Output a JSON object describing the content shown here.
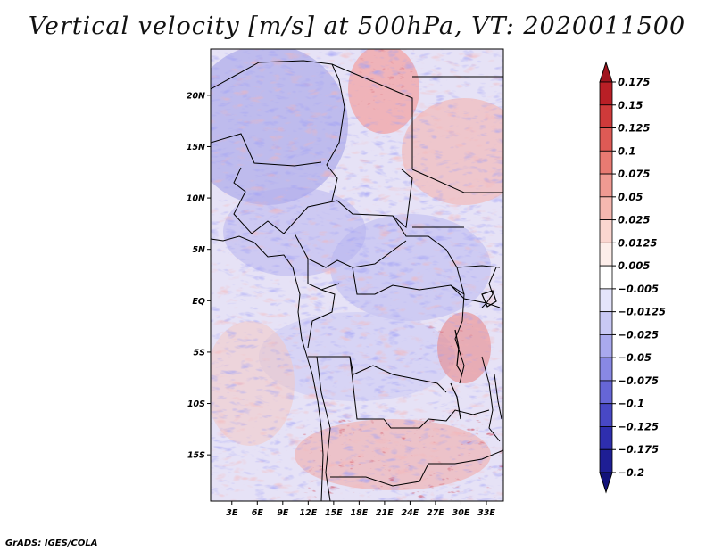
{
  "title": "Vertical velocity [m/s] at 500hPa, VT: 2020011500",
  "credit": "GrADS: IGES/COLA",
  "map": {
    "lat_ticks": [
      "20N",
      "15N",
      "10N",
      "5N",
      "EQ",
      "5S",
      "10S",
      "15S"
    ],
    "lat_values": [
      20,
      15,
      10,
      5,
      0,
      -5,
      -10,
      -15
    ],
    "lon_ticks": [
      "3E",
      "6E",
      "9E",
      "12E",
      "15E",
      "18E",
      "21E",
      "24E",
      "27E",
      "30E",
      "33E"
    ],
    "lon_values": [
      3,
      6,
      9,
      12,
      15,
      18,
      21,
      24,
      27,
      30,
      33
    ],
    "lon_range": [
      0.5,
      35
    ],
    "lat_range": [
      -19.5,
      24.5
    ]
  },
  "colorbar": {
    "levels": [
      "0.175",
      "0.15",
      "0.125",
      "0.1",
      "0.075",
      "0.05",
      "0.025",
      "0.0125",
      "0.005",
      "−0.005",
      "−0.0125",
      "−0.025",
      "−0.05",
      "−0.075",
      "−0.1",
      "−0.125",
      "−0.175",
      "−0.2"
    ],
    "colors": [
      "#a0141e",
      "#b91f26",
      "#cf3a3a",
      "#de5a55",
      "#e87a72",
      "#f09a92",
      "#f6b8b0",
      "#fbd6d0",
      "#fdeeea",
      "#ffffff",
      "#e4e4fb",
      "#c8c8f5",
      "#a9a9ee",
      "#8888e4",
      "#6666d6",
      "#4848c5",
      "#2e2eae",
      "#1e1e94",
      "#12127a"
    ]
  }
}
